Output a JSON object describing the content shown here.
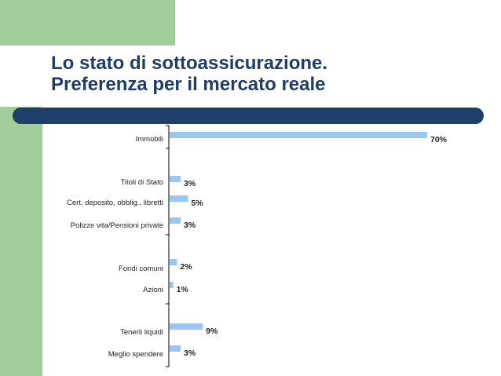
{
  "slide": {
    "title_line1": "Lo stato di sottoassicurazione.",
    "title_line2": "Preferenza per il mercato reale",
    "colors": {
      "green": "#a3cc9b",
      "title": "#1f3d68",
      "banner": "#1e3f6b",
      "bar": "#99c7f0",
      "text": "#222222"
    }
  },
  "chart_data": {
    "type": "bar",
    "orientation": "horizontal",
    "categories": [
      "Immobili",
      "Titoli di Stato",
      "Cert. deposito, obblig., libretti",
      "Polizze vita/Pensioni private",
      "Fondi comuni",
      "Azioni",
      "Tenerli liquidi",
      "Meglio spendere"
    ],
    "values": [
      70,
      3,
      5,
      3,
      2,
      1,
      9,
      3
    ],
    "value_labels": [
      "70%",
      "3%",
      "5%",
      "3%",
      "2%",
      "1%",
      "9%",
      "3%"
    ],
    "xlim": [
      0,
      100
    ],
    "grid": false,
    "legend": "none"
  }
}
